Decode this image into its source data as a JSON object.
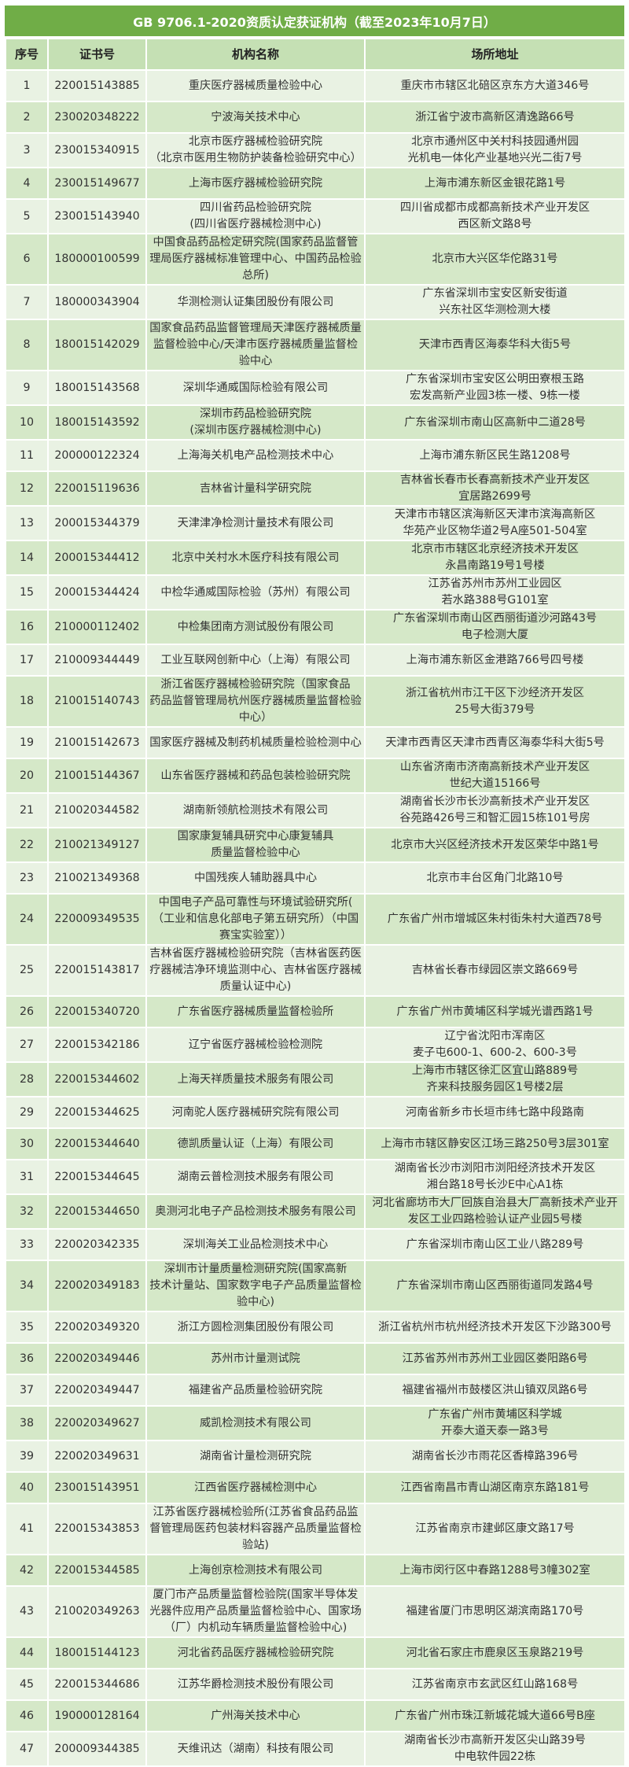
{
  "title": "GB 9706.1-2020资质认定获证机构（截至2023年10月7日）",
  "colors": {
    "title_bg": "#70ad47",
    "header_bg": "#c5e0b4",
    "row_dark": "#d5e8c8",
    "row_light": "#e9f2e3"
  },
  "columns": [
    "序号",
    "证书号",
    "机构名称",
    "场所地址"
  ],
  "rows": [
    [
      "1",
      "220015143885",
      "重庆医疗器械质量检验中心",
      "重庆市市辖区北碚区京东方大道346号"
    ],
    [
      "2",
      "230020348222",
      "宁波海关技术中心",
      "浙江省宁波市高新区清逸路66号"
    ],
    [
      "3",
      "230015340915",
      "北京市医疗器械检验研究院\n（北京市医用生物防护装备检验研究中心）",
      "北京市通州区中关村科技园通州园\n光机电一体化产业基地兴光二街7号"
    ],
    [
      "4",
      "230015149677",
      "上海市医疗器械检验研究院",
      "上海市浦东新区金银花路1号"
    ],
    [
      "5",
      "230015143940",
      "四川省药品检验研究院\n(四川省医疗器械检测中心)",
      "四川省成都市成都高新技术产业开发区\n西区新文路8号"
    ],
    [
      "6",
      "180000100599",
      "中国食品药品检定研究院(国家药品监督管\n理局医疗器械标准管理中心、中国药品检验\n总所)",
      "北京市大兴区华佗路31号"
    ],
    [
      "7",
      "180000343904",
      "华测检测认证集团股份有限公司",
      "广东省深圳市宝安区新安街道\n兴东社区华测检测大楼"
    ],
    [
      "8",
      "180015142029",
      "国家食品药品监督管理局天津医疗器械质量\n监督检验中心/天津市医疗器械质量监督检\n验中心",
      "天津市西青区海泰华科大街5号"
    ],
    [
      "9",
      "180015143568",
      "深圳华通威国际检验有限公司",
      "广东省深圳市宝安区公明田寮根玉路\n宏发高新产业园3栋一楼、9栋一楼"
    ],
    [
      "10",
      "180015143592",
      "深圳市药品检验研究院\n(深圳市医疗器械检测中心)",
      "广东省深圳市南山区高新中二道28号"
    ],
    [
      "11",
      "200000122324",
      "上海海关机电产品检测技术中心",
      "上海市浦东新区民生路1208号"
    ],
    [
      "12",
      "220015119636",
      "吉林省计量科学研究院",
      "吉林省长春市长春高新技术产业开发区\n宜居路2699号"
    ],
    [
      "13",
      "200015344379",
      "天津津净检测计量技术有限公司",
      "天津市市辖区滨海新区天津市滨海高新区\n华苑产业区物华道2号A座501-504室"
    ],
    [
      "14",
      "200015344412",
      "北京中关村水木医疗科技有限公司",
      "北京市市辖区北京经济技术开发区\n永昌南路19号1号楼"
    ],
    [
      "15",
      "200015344424",
      "中检华通威国际检验（苏州）有限公司",
      "江苏省苏州市苏州工业园区\n若水路388号G101室"
    ],
    [
      "16",
      "210000112402",
      "中检集团南方测试股份有限公司",
      "广东省深圳市南山区西丽街道沙河路43号\n电子检测大厦"
    ],
    [
      "17",
      "210009344449",
      "工业互联网创新中心（上海）有限公司",
      "上海市浦东新区金港路766号四号楼"
    ],
    [
      "18",
      "210015140743",
      "浙江省医疗器械检验研究院（国家食品\n药品监督管理局杭州医疗器械质量监督检验\n中心）",
      "浙江省杭州市江干区下沙经济开发区\n25号大街379号"
    ],
    [
      "19",
      "210015142673",
      "国家医疗器械及制药机械质量检验检测中心",
      "天津市西青区天津市西青区海泰华科大街5号"
    ],
    [
      "20",
      "210015144367",
      "山东省医疗器械和药品包装检验研究院",
      "山东省济南市济南高新技术产业开发区\n世纪大道15166号"
    ],
    [
      "21",
      "210020344582",
      "湖南新领航检测技术有限公司",
      "湖南省长沙市长沙高新技术产业开发区\n谷苑路426号三和智汇园15栋101号房"
    ],
    [
      "22",
      "210021349127",
      "国家康复辅具研究中心康复辅具\n质量监督检验中心",
      "北京市大兴区经济技术开发区荣华中路1号"
    ],
    [
      "23",
      "210021349368",
      "中国残疾人辅助器具中心",
      "北京市丰台区角门北路10号"
    ],
    [
      "24",
      "220009349535",
      "中国电子产品可靠性与环境试验研究所(\n（工业和信息化部电子第五研究所）（中国\n赛宝实验室））",
      "广东省广州市增城区朱村街朱村大道西78号"
    ],
    [
      "25",
      "220015143817",
      "吉林省医疗器械检验研究院（吉林省医药医\n疗器械洁净环境监测中心、吉林省医疗器械\n质量认证中心)",
      "吉林省长春市绿园区崇文路669号"
    ],
    [
      "26",
      "220015340720",
      "广东省医疗器械质量监督检验所",
      "广东省广州市黄埔区科学城光谱西路1号"
    ],
    [
      "27",
      "220015342186",
      "辽宁省医疗器械检验检测院",
      "辽宁省沈阳市浑南区\n麦子屯600-1、600-2、600-3号"
    ],
    [
      "28",
      "220015344602",
      "上海天祥质量技术服务有限公司",
      "上海市市辖区徐汇区宜山路889号\n齐来科技服务园区1号楼2层"
    ],
    [
      "29",
      "220015344625",
      "河南驼人医疗器械研究院有限公司",
      "河南省新乡市长垣市纬七路中段路南"
    ],
    [
      "30",
      "220015344640",
      "德凯质量认证（上海）有限公司",
      "上海市市辖区静安区江场三路250号3层301室"
    ],
    [
      "31",
      "220015344645",
      "湖南云普检测技术服务有限公司",
      "湖南省长沙市浏阳市浏阳经济技术开发区\n湘台路18号长沙E中心A1栋"
    ],
    [
      "32",
      "220015344650",
      "奥测河北电子产品检测技术服务有限公司",
      "河北省廊坊市大厂回族自治县大厂高新技术产业开\n发区工业四路检验认证产业园5号楼"
    ],
    [
      "33",
      "220020342335",
      "深圳海关工业品检测技术中心",
      "广东省深圳市南山区工业八路289号"
    ],
    [
      "34",
      "220020349183",
      "深圳市计量质量检测研究院(国家高新\n技术计量站、国家数字电子产品质量监督检\n验中心)",
      "广东省深圳市南山区西丽街道同发路4号"
    ],
    [
      "35",
      "220020349320",
      "浙江方圆检测集团股份有限公司",
      "浙江省杭州市杭州经济技术开发区下沙路300号"
    ],
    [
      "36",
      "220020349446",
      "苏州市计量测试院",
      "江苏省苏州市苏州工业园区娄阳路6号"
    ],
    [
      "37",
      "220020349447",
      "福建省产品质量检验研究院",
      "福建省福州市鼓楼区洪山镇双凤路6号"
    ],
    [
      "38",
      "220020349627",
      "威凯检测技术有限公司",
      "广东省广州市黄埔区科学城\n开泰大道天泰一路3号"
    ],
    [
      "39",
      "220020349631",
      "湖南省计量检测研究院",
      "湖南省长沙市雨花区香樟路396号"
    ],
    [
      "40",
      "230015143951",
      "江西省医疗器械检测中心",
      "江西省南昌市青山湖区南京东路181号"
    ],
    [
      "41",
      "220015343853",
      "江苏省医疗器械检验所(江苏省食品药品监\n督管理局医药包装材料容器产品质量监督检\n验站)",
      "江苏省南京市建邺区康文路17号"
    ],
    [
      "42",
      "220015344585",
      "上海创京检测技术有限公司",
      "上海市闵行区中春路1288号3幢302室"
    ],
    [
      "43",
      "210020349263",
      "厦门市产品质量监督检验院(国家半导体发\n光器件应用产品质量监督检验中心、国家场\n（厂）内机动车辆质量监督检验中心)",
      "福建省厦门市思明区湖滨南路170号"
    ],
    [
      "44",
      "180015144123",
      "河北省药品医疗器械检验研究院",
      "河北省石家庄市鹿泉区玉泉路219号"
    ],
    [
      "45",
      "220015344686",
      "江苏华爵检测技术股份有限公司",
      "江苏省南京市玄武区红山路168号"
    ],
    [
      "46",
      "190000128164",
      "广州海关技术中心",
      "广东省广州市珠江新城花城大道66号B座"
    ],
    [
      "47",
      "200009344385",
      "天维讯达（湖南）科技有限公司",
      "湖南省长沙市高新开发区尖山路39号\n中电软件园22栋"
    ]
  ]
}
